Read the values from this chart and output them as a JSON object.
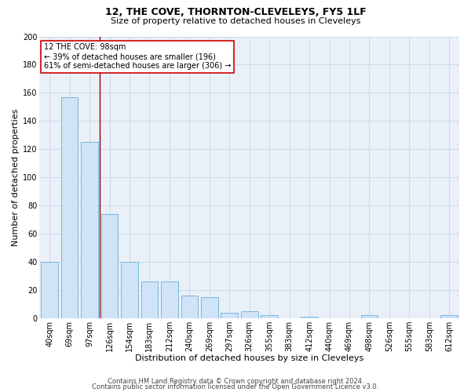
{
  "title": "12, THE COVE, THORNTON-CLEVELEYS, FY5 1LF",
  "subtitle": "Size of property relative to detached houses in Cleveleys",
  "xlabel": "Distribution of detached houses by size in Cleveleys",
  "ylabel": "Number of detached properties",
  "bar_color": "#d0e4f7",
  "bar_edge_color": "#6aaed6",
  "categories": [
    "40sqm",
    "69sqm",
    "97sqm",
    "126sqm",
    "154sqm",
    "183sqm",
    "212sqm",
    "240sqm",
    "269sqm",
    "297sqm",
    "326sqm",
    "355sqm",
    "383sqm",
    "412sqm",
    "440sqm",
    "469sqm",
    "498sqm",
    "526sqm",
    "555sqm",
    "583sqm",
    "612sqm"
  ],
  "values": [
    40,
    157,
    125,
    74,
    40,
    26,
    26,
    16,
    15,
    4,
    5,
    2,
    0,
    1,
    0,
    0,
    2,
    0,
    0,
    0,
    2
  ],
  "ylim": [
    0,
    200
  ],
  "yticks": [
    0,
    20,
    40,
    60,
    80,
    100,
    120,
    140,
    160,
    180,
    200
  ],
  "vline_x": 2.5,
  "vline_color": "#990000",
  "annotation_title": "12 THE COVE: 98sqm",
  "annotation_line1": "← 39% of detached houses are smaller (196)",
  "annotation_line2": "61% of semi-detached houses are larger (306) →",
  "annotation_box_color": "#ffffff",
  "annotation_box_edge": "#cc0000",
  "footer_line1": "Contains HM Land Registry data © Crown copyright and database right 2024.",
  "footer_line2": "Contains public sector information licensed under the Open Government Licence v3.0.",
  "bg_color": "#ffffff",
  "plot_bg_color": "#eaf0f8",
  "grid_color": "#c8d4e4",
  "title_fontsize": 9,
  "subtitle_fontsize": 8,
  "ylabel_fontsize": 8,
  "xlabel_fontsize": 8,
  "tick_fontsize": 7,
  "annotation_fontsize": 7,
  "footer_fontsize": 6
}
